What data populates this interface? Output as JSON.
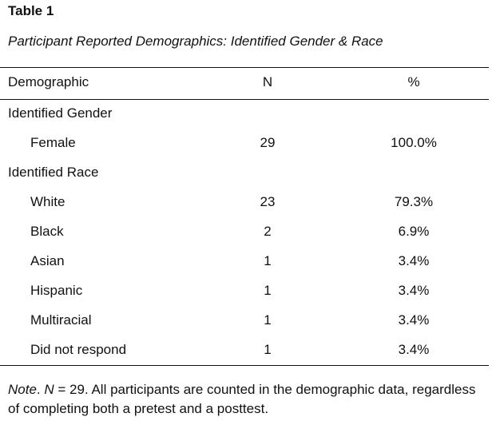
{
  "table": {
    "label": "Table 1",
    "title": "Participant Reported Demographics: Identified Gender & Race",
    "headers": [
      "Demographic",
      "N",
      "%"
    ],
    "rows": [
      {
        "label": "Identified Gender",
        "n": "",
        "pct": ""
      },
      {
        "label": "Female",
        "n": "29",
        "pct": "100.0%"
      },
      {
        "label": "Identified Race",
        "n": "",
        "pct": ""
      },
      {
        "label": "White",
        "n": "23",
        "pct": "79.3%"
      },
      {
        "label": "Black",
        "n": "2",
        "pct": "6.9%"
      },
      {
        "label": "Asian",
        "n": "1",
        "pct": "3.4%"
      },
      {
        "label": "Hispanic",
        "n": "1",
        "pct": "3.4%"
      },
      {
        "label": "Multiracial",
        "n": "1",
        "pct": "3.4%"
      },
      {
        "label": "Did not respond",
        "n": "1",
        "pct": "3.4%"
      }
    ]
  },
  "note": {
    "prefix": "Note",
    "n_symbol": "N",
    "text": " = 29. All participants are counted in the demographic data, regardless of completing both a pretest and a posttest."
  }
}
